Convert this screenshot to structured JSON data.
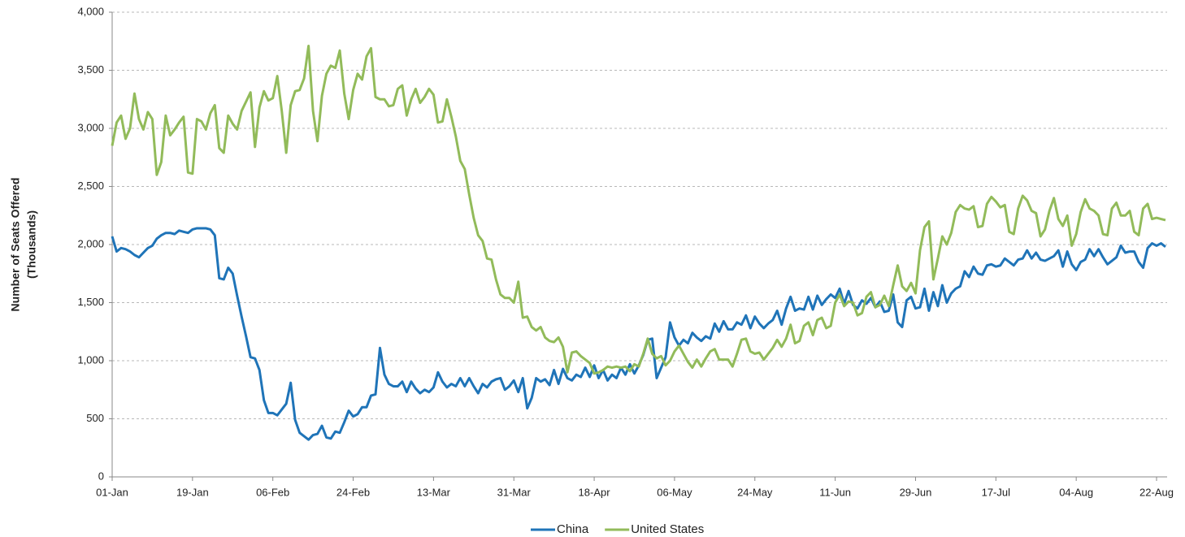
{
  "chart_data": {
    "type": "line",
    "ylabel": [
      "Number of Seats Offered",
      "(Thousands)"
    ],
    "categories": [
      "01-Jan",
      null,
      null,
      null,
      null,
      null,
      null,
      null,
      null,
      null,
      null,
      null,
      null,
      null,
      null,
      null,
      null,
      null,
      "19-Jan",
      null,
      null,
      null,
      null,
      null,
      null,
      null,
      null,
      null,
      null,
      null,
      null,
      null,
      null,
      null,
      null,
      null,
      "06-Feb",
      null,
      null,
      null,
      null,
      null,
      null,
      null,
      null,
      null,
      null,
      null,
      null,
      null,
      null,
      null,
      null,
      null,
      "24-Feb",
      null,
      null,
      null,
      null,
      null,
      null,
      null,
      null,
      null,
      null,
      null,
      null,
      null,
      null,
      null,
      null,
      null,
      "13-Mar",
      null,
      null,
      null,
      null,
      null,
      null,
      null,
      null,
      null,
      null,
      null,
      null,
      null,
      null,
      null,
      null,
      null,
      "31-Mar",
      null,
      null,
      null,
      null,
      null,
      null,
      null,
      null,
      null,
      null,
      null,
      null,
      null,
      null,
      null,
      null,
      null,
      "18-Apr",
      null,
      null,
      null,
      null,
      null,
      null,
      null,
      null,
      null,
      null,
      null,
      null,
      null,
      null,
      null,
      null,
      null,
      "06-May",
      null,
      null,
      null,
      null,
      null,
      null,
      null,
      null,
      null,
      null,
      null,
      null,
      null,
      null,
      null,
      null,
      null,
      "24-May",
      null,
      null,
      null,
      null,
      null,
      null,
      null,
      null,
      null,
      null,
      null,
      null,
      null,
      null,
      null,
      null,
      null,
      "11-Jun",
      null,
      null,
      null,
      null,
      null,
      null,
      null,
      null,
      null,
      null,
      null,
      null,
      null,
      null,
      null,
      null,
      null,
      "29-Jun",
      null,
      null,
      null,
      null,
      null,
      null,
      null,
      null,
      null,
      null,
      null,
      null,
      null,
      null,
      null,
      null,
      null,
      "17-Jul",
      null,
      null,
      null,
      null,
      null,
      null,
      null,
      null,
      null,
      null,
      null,
      null,
      null,
      null,
      null,
      null,
      null,
      "04-Aug",
      null,
      null,
      null,
      null,
      null,
      null,
      null,
      null,
      null,
      null,
      null,
      null,
      null,
      null,
      null,
      null,
      null,
      "22-Aug",
      null,
      null
    ],
    "series": [
      {
        "name": "China",
        "color": "#1f74b8",
        "values": [
          2070,
          1940,
          1970,
          1960,
          1940,
          1910,
          1890,
          1930,
          1970,
          1990,
          2050,
          2080,
          2100,
          2100,
          2090,
          2120,
          2110,
          2100,
          2130,
          2140,
          2140,
          2140,
          2130,
          2080,
          1710,
          1700,
          1800,
          1750,
          1560,
          1380,
          1210,
          1030,
          1020,
          920,
          660,
          550,
          550,
          530,
          580,
          630,
          810,
          490,
          380,
          350,
          320,
          360,
          370,
          440,
          340,
          330,
          390,
          380,
          470,
          570,
          520,
          540,
          600,
          600,
          700,
          710,
          1110,
          880,
          800,
          780,
          780,
          820,
          730,
          820,
          760,
          720,
          750,
          730,
          770,
          900,
          820,
          770,
          800,
          780,
          850,
          780,
          850,
          780,
          720,
          800,
          770,
          820,
          840,
          850,
          750,
          780,
          830,
          730,
          850,
          590,
          680,
          850,
          820,
          840,
          790,
          920,
          800,
          930,
          850,
          830,
          880,
          860,
          940,
          860,
          960,
          850,
          920,
          830,
          880,
          850,
          940,
          880,
          970,
          890,
          960,
          1050,
          1180,
          1190,
          850,
          940,
          1030,
          1330,
          1200,
          1130,
          1180,
          1150,
          1240,
          1200,
          1170,
          1210,
          1190,
          1320,
          1250,
          1340,
          1270,
          1270,
          1330,
          1310,
          1390,
          1280,
          1380,
          1320,
          1280,
          1320,
          1350,
          1430,
          1310,
          1450,
          1550,
          1430,
          1450,
          1440,
          1550,
          1440,
          1560,
          1480,
          1530,
          1570,
          1540,
          1620,
          1490,
          1600,
          1480,
          1450,
          1520,
          1490,
          1540,
          1460,
          1510,
          1420,
          1430,
          1570,
          1330,
          1290,
          1520,
          1550,
          1450,
          1460,
          1620,
          1430,
          1590,
          1470,
          1650,
          1500,
          1580,
          1620,
          1640,
          1770,
          1720,
          1810,
          1750,
          1740,
          1820,
          1830,
          1810,
          1820,
          1880,
          1850,
          1820,
          1870,
          1880,
          1950,
          1880,
          1930,
          1870,
          1860,
          1880,
          1900,
          1950,
          1810,
          1940,
          1830,
          1780,
          1850,
          1870,
          1960,
          1900,
          1960,
          1890,
          1830,
          1860,
          1890,
          1990,
          1930,
          1940,
          1940,
          1850,
          1800,
          1970,
          2010,
          1990,
          2010,
          1980
        ]
      },
      {
        "name": "United States",
        "color": "#92bb5a",
        "values": [
          2850,
          3050,
          3110,
          2910,
          3000,
          3300,
          3080,
          2990,
          3140,
          3080,
          2600,
          2710,
          3110,
          2940,
          2990,
          3050,
          3100,
          2620,
          2610,
          3080,
          3060,
          2990,
          3130,
          3200,
          2830,
          2790,
          3110,
          3040,
          2990,
          3150,
          3230,
          3310,
          2840,
          3180,
          3320,
          3240,
          3260,
          3450,
          3150,
          2790,
          3200,
          3320,
          3330,
          3430,
          3710,
          3150,
          2890,
          3280,
          3470,
          3540,
          3520,
          3670,
          3300,
          3080,
          3330,
          3470,
          3420,
          3620,
          3690,
          3270,
          3250,
          3250,
          3190,
          3200,
          3340,
          3370,
          3110,
          3250,
          3340,
          3220,
          3270,
          3340,
          3290,
          3050,
          3060,
          3250,
          3100,
          2930,
          2720,
          2650,
          2430,
          2230,
          2080,
          2030,
          1880,
          1870,
          1700,
          1570,
          1540,
          1540,
          1500,
          1680,
          1370,
          1380,
          1290,
          1260,
          1290,
          1200,
          1170,
          1160,
          1200,
          1120,
          900,
          1070,
          1080,
          1040,
          1010,
          980,
          890,
          900,
          920,
          950,
          940,
          950,
          940,
          950,
          910,
          970,
          950,
          1060,
          1190,
          1060,
          1020,
          1040,
          960,
          1000,
          1080,
          1130,
          1060,
          990,
          940,
          1010,
          950,
          1020,
          1080,
          1100,
          1010,
          1010,
          1010,
          950,
          1060,
          1180,
          1190,
          1080,
          1060,
          1070,
          1010,
          1060,
          1110,
          1180,
          1120,
          1190,
          1310,
          1150,
          1170,
          1300,
          1330,
          1220,
          1350,
          1370,
          1280,
          1300,
          1500,
          1570,
          1470,
          1510,
          1500,
          1390,
          1410,
          1550,
          1590,
          1460,
          1480,
          1560,
          1470,
          1650,
          1820,
          1640,
          1600,
          1670,
          1580,
          1950,
          2150,
          2200,
          1700,
          1880,
          2070,
          2000,
          2100,
          2280,
          2340,
          2310,
          2300,
          2330,
          2150,
          2160,
          2350,
          2410,
          2370,
          2320,
          2340,
          2110,
          2090,
          2310,
          2420,
          2380,
          2290,
          2270,
          2070,
          2130,
          2290,
          2400,
          2220,
          2160,
          2250,
          1990,
          2090,
          2280,
          2390,
          2310,
          2290,
          2250,
          2090,
          2080,
          2310,
          2360,
          2250,
          2250,
          2290,
          2110,
          2080,
          2310,
          2350,
          2220,
          2230,
          2220,
          2210
        ]
      }
    ],
    "ylim": [
      0,
      4000
    ],
    "yticks": [
      0,
      500,
      {
        "value": 1000,
        "label": "1,000"
      },
      {
        "value": 1500,
        "label": "1,500"
      },
      {
        "value": 2000,
        "label": "2,000"
      },
      {
        "value": 2500,
        "label": "2,500"
      },
      {
        "value": 3000,
        "label": "3,000"
      },
      {
        "value": 3500,
        "label": "3,500"
      },
      {
        "value": 4000,
        "label": "4,000"
      }
    ],
    "grid": true,
    "legend": "bottom"
  }
}
